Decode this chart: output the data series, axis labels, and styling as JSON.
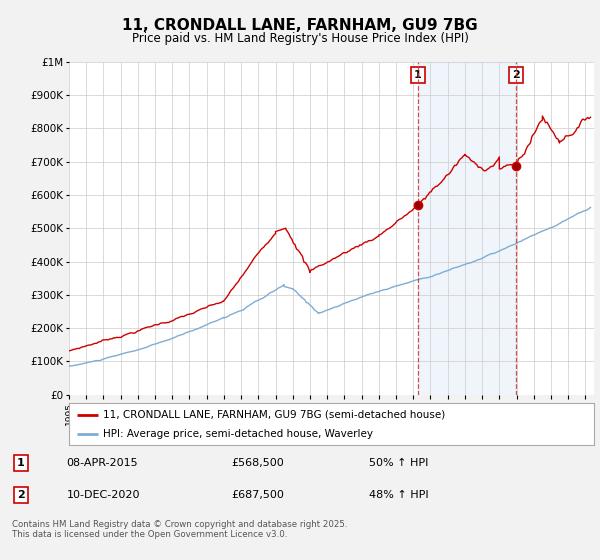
{
  "title": "11, CRONDALL LANE, FARNHAM, GU9 7BG",
  "subtitle": "Price paid vs. HM Land Registry's House Price Index (HPI)",
  "red_label": "11, CRONDALL LANE, FARNHAM, GU9 7BG (semi-detached house)",
  "blue_label": "HPI: Average price, semi-detached house, Waverley",
  "annotation1_date": "08-APR-2015",
  "annotation1_price": "£568,500",
  "annotation1_hpi": "50% ↑ HPI",
  "annotation2_date": "10-DEC-2020",
  "annotation2_price": "£687,500",
  "annotation2_hpi": "48% ↑ HPI",
  "footer": "Contains HM Land Registry data © Crown copyright and database right 2025.\nThis data is licensed under the Open Government Licence v3.0.",
  "background_color": "#f2f2f2",
  "plot_bg_color": "#ffffff",
  "red_color": "#cc0000",
  "blue_color": "#7eadd4",
  "vline_color": "#cc3333",
  "span_color": "#ddeeff",
  "ylim": [
    0,
    1000000
  ],
  "yticks": [
    0,
    100000,
    200000,
    300000,
    400000,
    500000,
    600000,
    700000,
    800000,
    900000,
    1000000
  ],
  "ytick_labels": [
    "£0",
    "£100K",
    "£200K",
    "£300K",
    "£400K",
    "£500K",
    "£600K",
    "£700K",
    "£800K",
    "£900K",
    "£1M"
  ],
  "vline1_x": 2015.27,
  "vline2_x": 2020.95,
  "point1_x": 2015.27,
  "point1_y": 568500,
  "point2_x": 2020.95,
  "point2_y": 687500,
  "xmin": 1995,
  "xmax": 2025.5
}
